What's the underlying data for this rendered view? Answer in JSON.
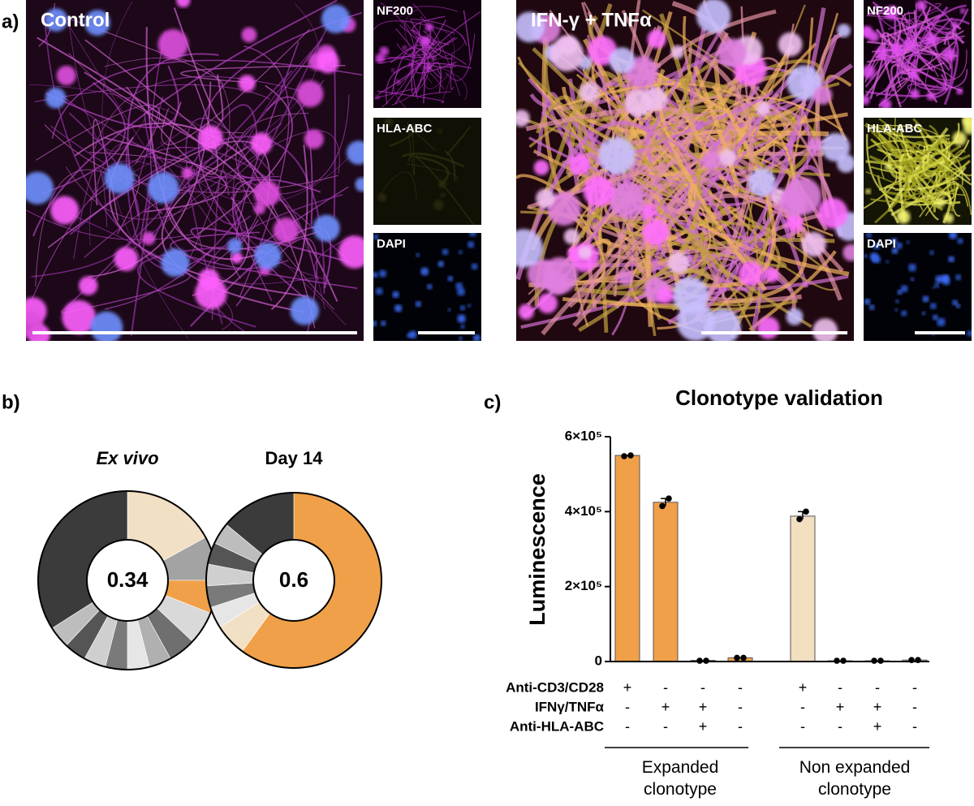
{
  "panel_a": {
    "label": "a)",
    "images": [
      {
        "title": "Control",
        "channels": [
          "NF200",
          "HLA-ABC",
          "DAPI"
        ]
      },
      {
        "title": "IFN-γ + TNFα",
        "channels": [
          "NF200",
          "HLA-ABC",
          "DAPI"
        ]
      }
    ]
  },
  "panel_b": {
    "label": "b)"
  },
  "panel_c": {
    "label": "c)"
  },
  "chart_data": [
    {
      "type": "pie",
      "title": "Ex vivo",
      "center_label": "0.34",
      "values": [
        17,
        8,
        6,
        6,
        5,
        4,
        4,
        4,
        4,
        4,
        4,
        34
      ],
      "colors": [
        "#f2e0c4",
        "#a3a3a3",
        "#f0a048",
        "#d9d9d9",
        "#6f6f6f",
        "#b0b0b0",
        "#e6e6e6",
        "#7a7a7a",
        "#cfcfcf",
        "#555555",
        "#bdbdbd",
        "#3b3b3b"
      ]
    },
    {
      "type": "pie",
      "title": "Day 14",
      "center_label": "0.6",
      "values": [
        60,
        6,
        4,
        4,
        4,
        4,
        4,
        14
      ],
      "colors": [
        "#f0a048",
        "#f2e0c4",
        "#e6e6e6",
        "#7a7a7a",
        "#cfcfcf",
        "#555555",
        "#bdbdbd",
        "#3b3b3b"
      ]
    },
    {
      "type": "bar",
      "title": "Clonotype validation",
      "y_label": "Luminescence",
      "values": [
        550000,
        425000,
        3000,
        10000,
        388000,
        2000,
        2000,
        4000
      ],
      "colors": [
        "#f0a048",
        "#f0a048",
        "#f0a048",
        "#f0a048",
        "#f2dfc0",
        "#f2dfc0",
        "#f2dfc0",
        "#f2dfc0"
      ],
      "points": [
        [
          548000,
          550000
        ],
        [
          415000,
          435000
        ],
        [
          2000,
          2000
        ],
        [
          10000,
          10000
        ],
        [
          380000,
          400000
        ],
        [
          2000,
          2000
        ],
        [
          2000,
          2000
        ],
        [
          4000,
          4000
        ]
      ],
      "ylim": [
        0,
        600000
      ],
      "yticks": [
        0,
        {
          "value": 200000,
          "label": "2×10⁵"
        },
        {
          "value": 400000,
          "label": "4×10⁵"
        },
        {
          "value": 600000,
          "label": "6×10⁵"
        }
      ],
      "conditions": [
        {
          "name": "Anti-CD3/CD28",
          "values": [
            "+",
            "-",
            "-",
            "-",
            "+",
            "-",
            "-",
            "-"
          ]
        },
        {
          "name": "IFNγ/TNFα",
          "values": [
            "-",
            "+",
            "+",
            "-",
            "-",
            "+",
            "+",
            "-"
          ]
        },
        {
          "name": "Anti-HLA-ABC",
          "values": [
            "-",
            "-",
            "+",
            "-",
            "-",
            "-",
            "+",
            "-"
          ]
        }
      ],
      "groups": [
        "Expanded clonotype",
        "Non expanded clonotype"
      ]
    }
  ]
}
